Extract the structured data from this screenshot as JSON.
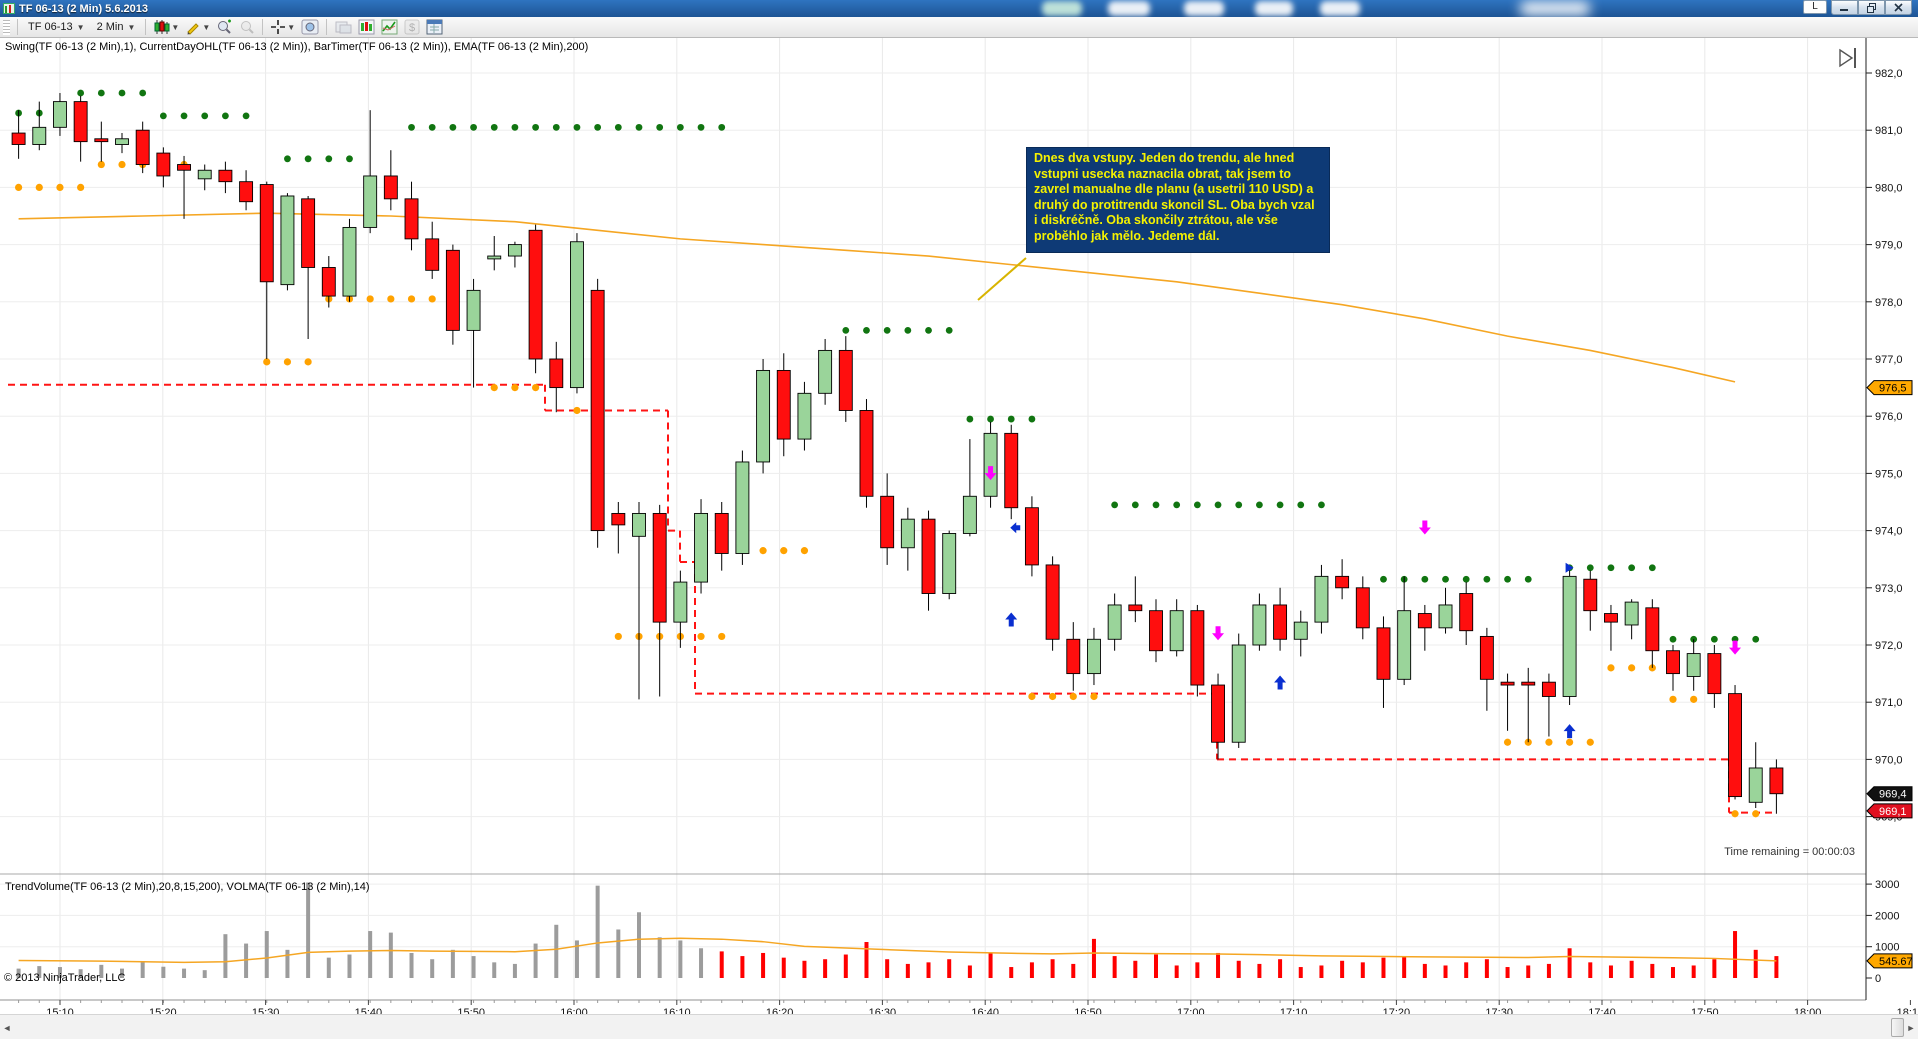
{
  "window": {
    "title": "TF 06-13 (2 Min)  5.6.2013",
    "controls": {
      "lock_label": "L",
      "minimize": "minimize",
      "restore": "restore",
      "close": "close"
    }
  },
  "toolbar": {
    "instrument": "TF 06-13",
    "interval": "2 Min",
    "icons": [
      {
        "name": "chart-style-icon",
        "dropdown": true
      },
      {
        "name": "drawing-tools-icon",
        "dropdown": true
      },
      {
        "name": "zoom-in-icon",
        "dropdown": false
      },
      {
        "name": "zoom-out-icon",
        "dropdown": false
      },
      {
        "name": "sep",
        "dropdown": false
      },
      {
        "name": "crosshair-icon",
        "dropdown": true
      },
      {
        "name": "snapshot-icon",
        "dropdown": false
      },
      {
        "name": "sep",
        "dropdown": false
      },
      {
        "name": "data-box-icon",
        "dropdown": false
      },
      {
        "name": "chart-trader-icon",
        "dropdown": false
      },
      {
        "name": "indicators-icon",
        "dropdown": false
      },
      {
        "name": "strategies-icon",
        "dropdown": false
      },
      {
        "name": "properties-icon",
        "dropdown": false
      }
    ]
  },
  "chart": {
    "indicator_label": "Swing(TF 06-13 (2 Min),1), CurrentDayOHL(TF 06-13 (2 Min)), BarTimer(TF 06-13 (2 Min)), EMA(TF 06-13 (2 Min),200)",
    "volume_label": "TrendVolume(TF 06-13 (2 Min),20,8,15,200), VOLMA(TF 06-13 (2 Min),14)",
    "copyright": "© 2013 NinjaTrader, LLC",
    "time_remaining": "Time remaining = 00:00:03",
    "note": {
      "bg": "#0e3a76",
      "color": "#f5f200",
      "lines": [
        "Dnes dva vstupy. Jeden do trendu, ale hned",
        "vstupni usecka naznacila obrat, tak jsem to",
        "zavrel manualne dle planu (a usetril 110 USD) a",
        "druhý do protitrendu skoncil SL. Oba bych vzal",
        "i diskréčně. Oba skončily ztrátou, ale vše",
        "proběhlo jak mělo. Jedeme dál."
      ]
    },
    "price_axis": {
      "labels": [
        "982,0",
        "981,0",
        "980,0",
        "979,0",
        "978,0",
        "977,0",
        "976,0",
        "975,0",
        "974,0",
        "973,0",
        "972,0",
        "971,0",
        "970,0",
        "969,0"
      ],
      "max": 982,
      "min": 969,
      "badges": [
        {
          "text": "976,5",
          "price": 976.5,
          "bg": "#ffa800",
          "fg": "#000000"
        },
        {
          "text": "969,4",
          "price": 969.4,
          "bg": "#111111",
          "fg": "#ffffff"
        },
        {
          "text": "969,1",
          "price": 969.1,
          "bg": "#e01020",
          "fg": "#ffffff"
        }
      ]
    },
    "time_axis": {
      "labels": [
        "15:10",
        "15:20",
        "15:30",
        "15:40",
        "15:50",
        "16:00",
        "16:10",
        "16:20",
        "16:30",
        "16:40",
        "16:50",
        "17:00",
        "17:10",
        "17:20",
        "17:30",
        "17:40",
        "17:50",
        "18:00",
        "18:10"
      ]
    },
    "volume_axis": {
      "labels": [
        "3000",
        "2000",
        "1000",
        "0"
      ],
      "badge": {
        "text": "545.67",
        "bg": "#ffa800",
        "fg": "#000000"
      }
    }
  },
  "chart_data": {
    "type": "candlestick_with_volume",
    "title": "TF 06-13 2 Min bars 5.6.2013",
    "start_time": "15:06",
    "interval_min": 2,
    "ylim": [
      969,
      982
    ],
    "volume_ylim": [
      0,
      3200
    ],
    "colors": {
      "up": "#9ad49a",
      "down": "#ff0e0e",
      "wick": "#000000",
      "ema": "#f5a623",
      "volma": "#f5a623",
      "gray_volume": "#9c9c9c",
      "red_volume": "#ff0000",
      "swing_high_dot": "#117511",
      "swing_low_dot": "#ffa200",
      "day_low_line": "#ff1414"
    },
    "candles": [
      [
        980.95,
        981.35,
        980.5,
        980.75
      ],
      [
        980.75,
        981.5,
        980.65,
        981.05
      ],
      [
        981.05,
        981.65,
        980.9,
        981.5
      ],
      [
        981.5,
        981.6,
        980.45,
        980.8
      ],
      [
        980.85,
        981.15,
        980.45,
        980.8
      ],
      [
        980.75,
        980.95,
        980.6,
        980.85
      ],
      [
        981.0,
        981.15,
        980.25,
        980.4
      ],
      [
        980.6,
        980.7,
        980.0,
        980.2
      ],
      [
        980.4,
        980.55,
        979.45,
        980.3
      ],
      [
        980.15,
        980.4,
        979.95,
        980.3
      ],
      [
        980.3,
        980.45,
        979.9,
        980.1
      ],
      [
        980.1,
        980.3,
        979.6,
        979.75
      ],
      [
        980.05,
        980.1,
        977.0,
        978.35
      ],
      [
        978.3,
        979.9,
        978.2,
        979.85
      ],
      [
        979.8,
        979.85,
        977.35,
        978.6
      ],
      [
        978.6,
        978.8,
        977.9,
        978.1
      ],
      [
        978.1,
        979.45,
        978.0,
        979.3
      ],
      [
        979.3,
        981.35,
        979.2,
        980.2
      ],
      [
        980.2,
        980.65,
        979.6,
        979.8
      ],
      [
        979.8,
        980.1,
        978.9,
        979.1
      ],
      [
        979.1,
        979.4,
        978.4,
        978.55
      ],
      [
        978.9,
        979.0,
        977.25,
        977.5
      ],
      [
        977.5,
        978.4,
        976.5,
        978.2
      ],
      [
        978.75,
        979.15,
        978.55,
        978.8
      ],
      [
        978.8,
        979.05,
        978.6,
        979.0
      ],
      [
        979.25,
        979.35,
        976.75,
        977.0
      ],
      [
        977.0,
        977.3,
        976.07,
        976.5
      ],
      [
        976.5,
        979.2,
        976.4,
        979.05
      ],
      [
        978.2,
        978.4,
        973.7,
        974.0
      ],
      [
        974.3,
        974.5,
        973.6,
        974.1
      ],
      [
        973.9,
        974.5,
        971.05,
        974.3
      ],
      [
        974.3,
        974.45,
        971.1,
        972.4
      ],
      [
        972.4,
        973.3,
        971.95,
        973.1
      ],
      [
        973.1,
        974.55,
        972.9,
        974.3
      ],
      [
        974.3,
        974.5,
        973.3,
        973.6
      ],
      [
        973.6,
        975.4,
        973.4,
        975.2
      ],
      [
        975.2,
        977.0,
        975.0,
        976.8
      ],
      [
        976.8,
        977.1,
        975.3,
        975.6
      ],
      [
        975.6,
        976.6,
        975.4,
        976.4
      ],
      [
        976.4,
        977.35,
        976.2,
        977.15
      ],
      [
        977.15,
        977.4,
        975.9,
        976.1
      ],
      [
        976.1,
        976.3,
        974.4,
        974.6
      ],
      [
        974.6,
        975.0,
        973.4,
        973.7
      ],
      [
        973.7,
        974.4,
        973.3,
        974.2
      ],
      [
        974.2,
        974.35,
        972.6,
        972.9
      ],
      [
        972.9,
        974.0,
        972.8,
        973.95
      ],
      [
        973.95,
        975.6,
        973.9,
        974.6
      ],
      [
        974.6,
        975.9,
        974.4,
        975.7
      ],
      [
        975.7,
        975.85,
        974.2,
        974.4
      ],
      [
        974.4,
        974.6,
        973.2,
        973.4
      ],
      [
        973.4,
        973.55,
        971.9,
        972.1
      ],
      [
        972.1,
        972.4,
        971.2,
        971.5
      ],
      [
        971.5,
        972.3,
        971.3,
        972.1
      ],
      [
        972.1,
        972.9,
        971.9,
        972.7
      ],
      [
        972.7,
        973.2,
        972.4,
        972.6
      ],
      [
        972.6,
        972.8,
        971.7,
        971.9
      ],
      [
        971.9,
        972.8,
        971.8,
        972.6
      ],
      [
        972.6,
        972.7,
        971.1,
        971.3
      ],
      [
        971.3,
        971.5,
        970.0,
        970.3
      ],
      [
        970.3,
        972.2,
        970.2,
        972.0
      ],
      [
        972.0,
        972.9,
        971.9,
        972.7
      ],
      [
        972.7,
        973.0,
        971.9,
        972.1
      ],
      [
        972.1,
        972.6,
        971.8,
        972.4
      ],
      [
        972.4,
        973.4,
        972.2,
        973.2
      ],
      [
        973.2,
        973.5,
        972.8,
        973.0
      ],
      [
        973.0,
        973.2,
        972.1,
        972.3
      ],
      [
        972.3,
        972.5,
        970.9,
        971.4
      ],
      [
        971.4,
        973.2,
        971.3,
        972.6
      ],
      [
        972.55,
        972.7,
        971.9,
        972.3
      ],
      [
        972.3,
        973.0,
        972.2,
        972.7
      ],
      [
        972.9,
        973.1,
        972.0,
        972.25
      ],
      [
        972.15,
        972.3,
        970.85,
        971.4
      ],
      [
        971.35,
        971.5,
        970.5,
        971.3
      ],
      [
        971.35,
        971.6,
        970.3,
        971.3
      ],
      [
        971.35,
        971.5,
        970.4,
        971.1
      ],
      [
        971.1,
        973.3,
        970.95,
        973.2
      ],
      [
        973.15,
        973.3,
        972.25,
        972.6
      ],
      [
        972.55,
        972.7,
        971.9,
        972.4
      ],
      [
        972.35,
        972.8,
        972.1,
        972.75
      ],
      [
        972.65,
        972.8,
        971.6,
        971.9
      ],
      [
        971.9,
        972.0,
        971.2,
        971.5
      ],
      [
        971.45,
        972.1,
        971.2,
        971.85
      ],
      [
        971.85,
        972.0,
        970.9,
        971.15
      ],
      [
        971.15,
        971.3,
        969.3,
        969.35
      ],
      [
        969.25,
        970.3,
        969.15,
        969.85
      ],
      [
        969.85,
        970.0,
        969.05,
        969.4
      ]
    ],
    "volumes": [
      300,
      380,
      350,
      280,
      420,
      300,
      520,
      360,
      300,
      250,
      1400,
      1100,
      1500,
      900,
      3050,
      650,
      750,
      1500,
      1450,
      800,
      600,
      900,
      700,
      500,
      450,
      1100,
      1700,
      1200,
      2950,
      1550,
      2100,
      1300,
      1200,
      950,
      850,
      700,
      800,
      650,
      550,
      600,
      750,
      1150,
      600,
      450,
      500,
      600,
      400,
      800,
      350,
      500,
      600,
      450,
      1250,
      700,
      550,
      750,
      400,
      500,
      800,
      550,
      450,
      600,
      350,
      400,
      550,
      500,
      650,
      700,
      450,
      400,
      500,
      600,
      350,
      400,
      450,
      950,
      500,
      400,
      550,
      450,
      350,
      400,
      600,
      1500,
      900,
      700
    ],
    "gray_volume_until": 33,
    "ema_points": [
      [
        0,
        979.45
      ],
      [
        6,
        979.5
      ],
      [
        12,
        979.55
      ],
      [
        18,
        979.5
      ],
      [
        24,
        979.4
      ],
      [
        28,
        979.25
      ],
      [
        32,
        979.1
      ],
      [
        36,
        979.0
      ],
      [
        40,
        978.9
      ],
      [
        44,
        978.8
      ],
      [
        48,
        978.65
      ],
      [
        52,
        978.5
      ],
      [
        56,
        978.35
      ],
      [
        60,
        978.15
      ],
      [
        64,
        977.95
      ],
      [
        68,
        977.7
      ],
      [
        72,
        977.4
      ],
      [
        76,
        977.15
      ],
      [
        80,
        976.85
      ],
      [
        83,
        976.6
      ]
    ],
    "volma_points": [
      [
        0,
        560
      ],
      [
        4,
        540
      ],
      [
        8,
        500
      ],
      [
        10,
        520
      ],
      [
        12,
        640
      ],
      [
        14,
        820
      ],
      [
        16,
        860
      ],
      [
        18,
        880
      ],
      [
        20,
        860
      ],
      [
        24,
        840
      ],
      [
        26,
        920
      ],
      [
        28,
        1120
      ],
      [
        30,
        1240
      ],
      [
        32,
        1270
      ],
      [
        34,
        1240
      ],
      [
        36,
        1160
      ],
      [
        38,
        1010
      ],
      [
        40,
        960
      ],
      [
        42,
        905
      ],
      [
        45,
        830
      ],
      [
        48,
        790
      ],
      [
        50,
        770
      ],
      [
        52,
        800
      ],
      [
        55,
        780
      ],
      [
        58,
        765
      ],
      [
        60,
        745
      ],
      [
        63,
        705
      ],
      [
        65,
        695
      ],
      [
        68,
        675
      ],
      [
        70,
        665
      ],
      [
        73,
        655
      ],
      [
        75,
        685
      ],
      [
        77,
        672
      ],
      [
        80,
        645
      ],
      [
        82,
        625
      ],
      [
        85,
        546
      ]
    ],
    "swing_high_dots": [
      [
        981.3,
        0,
        1
      ],
      [
        981.65,
        3,
        6
      ],
      [
        981.25,
        7,
        11
      ],
      [
        980.5,
        13,
        16
      ],
      [
        981.05,
        19,
        34
      ],
      [
        977.5,
        40,
        45
      ],
      [
        975.95,
        46,
        49
      ],
      [
        974.45,
        53,
        63
      ],
      [
        973.15,
        66,
        73
      ],
      [
        973.35,
        75,
        79
      ],
      [
        972.1,
        80,
        84
      ]
    ],
    "swing_low_dots": [
      [
        980.0,
        0,
        3
      ],
      [
        980.4,
        4,
        8
      ],
      [
        976.95,
        12,
        14
      ],
      [
        978.05,
        15,
        20
      ],
      [
        976.5,
        23,
        25
      ],
      [
        976.1,
        27,
        28
      ],
      [
        972.15,
        29,
        34
      ],
      [
        973.65,
        36,
        38
      ],
      [
        971.1,
        49,
        52
      ],
      [
        972.35,
        56,
        57
      ],
      [
        970.3,
        72,
        76
      ],
      [
        971.6,
        77,
        79
      ],
      [
        971.05,
        80,
        81
      ],
      [
        969.05,
        83,
        84
      ]
    ],
    "day_low_line": [
      [
        8,
        545,
        976.55
      ],
      [
        545,
        668,
        976.1
      ],
      [
        668,
        680,
        974.0
      ],
      [
        680,
        695,
        973.45
      ],
      [
        695,
        1217,
        971.15
      ],
      [
        1217,
        1729,
        970.0
      ],
      [
        1729,
        1772,
        969.07
      ]
    ],
    "arrows": [
      {
        "i": 47,
        "p": 974.9,
        "d": "down",
        "c": "#ff00ff"
      },
      {
        "i": 48,
        "p": 974.05,
        "d": "left",
        "c": "#0a2fd0"
      },
      {
        "i": 48,
        "p": 972.55,
        "d": "up",
        "c": "#0a2fd0"
      },
      {
        "i": 58,
        "p": 972.1,
        "d": "down",
        "c": "#ff00ff"
      },
      {
        "i": 61,
        "p": 971.45,
        "d": "up",
        "c": "#0a2fd0"
      },
      {
        "i": 68,
        "p": 973.95,
        "d": "down",
        "c": "#ff00ff"
      },
      {
        "i": 75,
        "p": 973.35,
        "d": "right",
        "c": "#0a2fd0"
      },
      {
        "i": 75,
        "p": 970.6,
        "d": "up",
        "c": "#0a2fd0"
      },
      {
        "i": 83,
        "p": 971.85,
        "d": "down",
        "c": "#ff00ff"
      }
    ]
  }
}
